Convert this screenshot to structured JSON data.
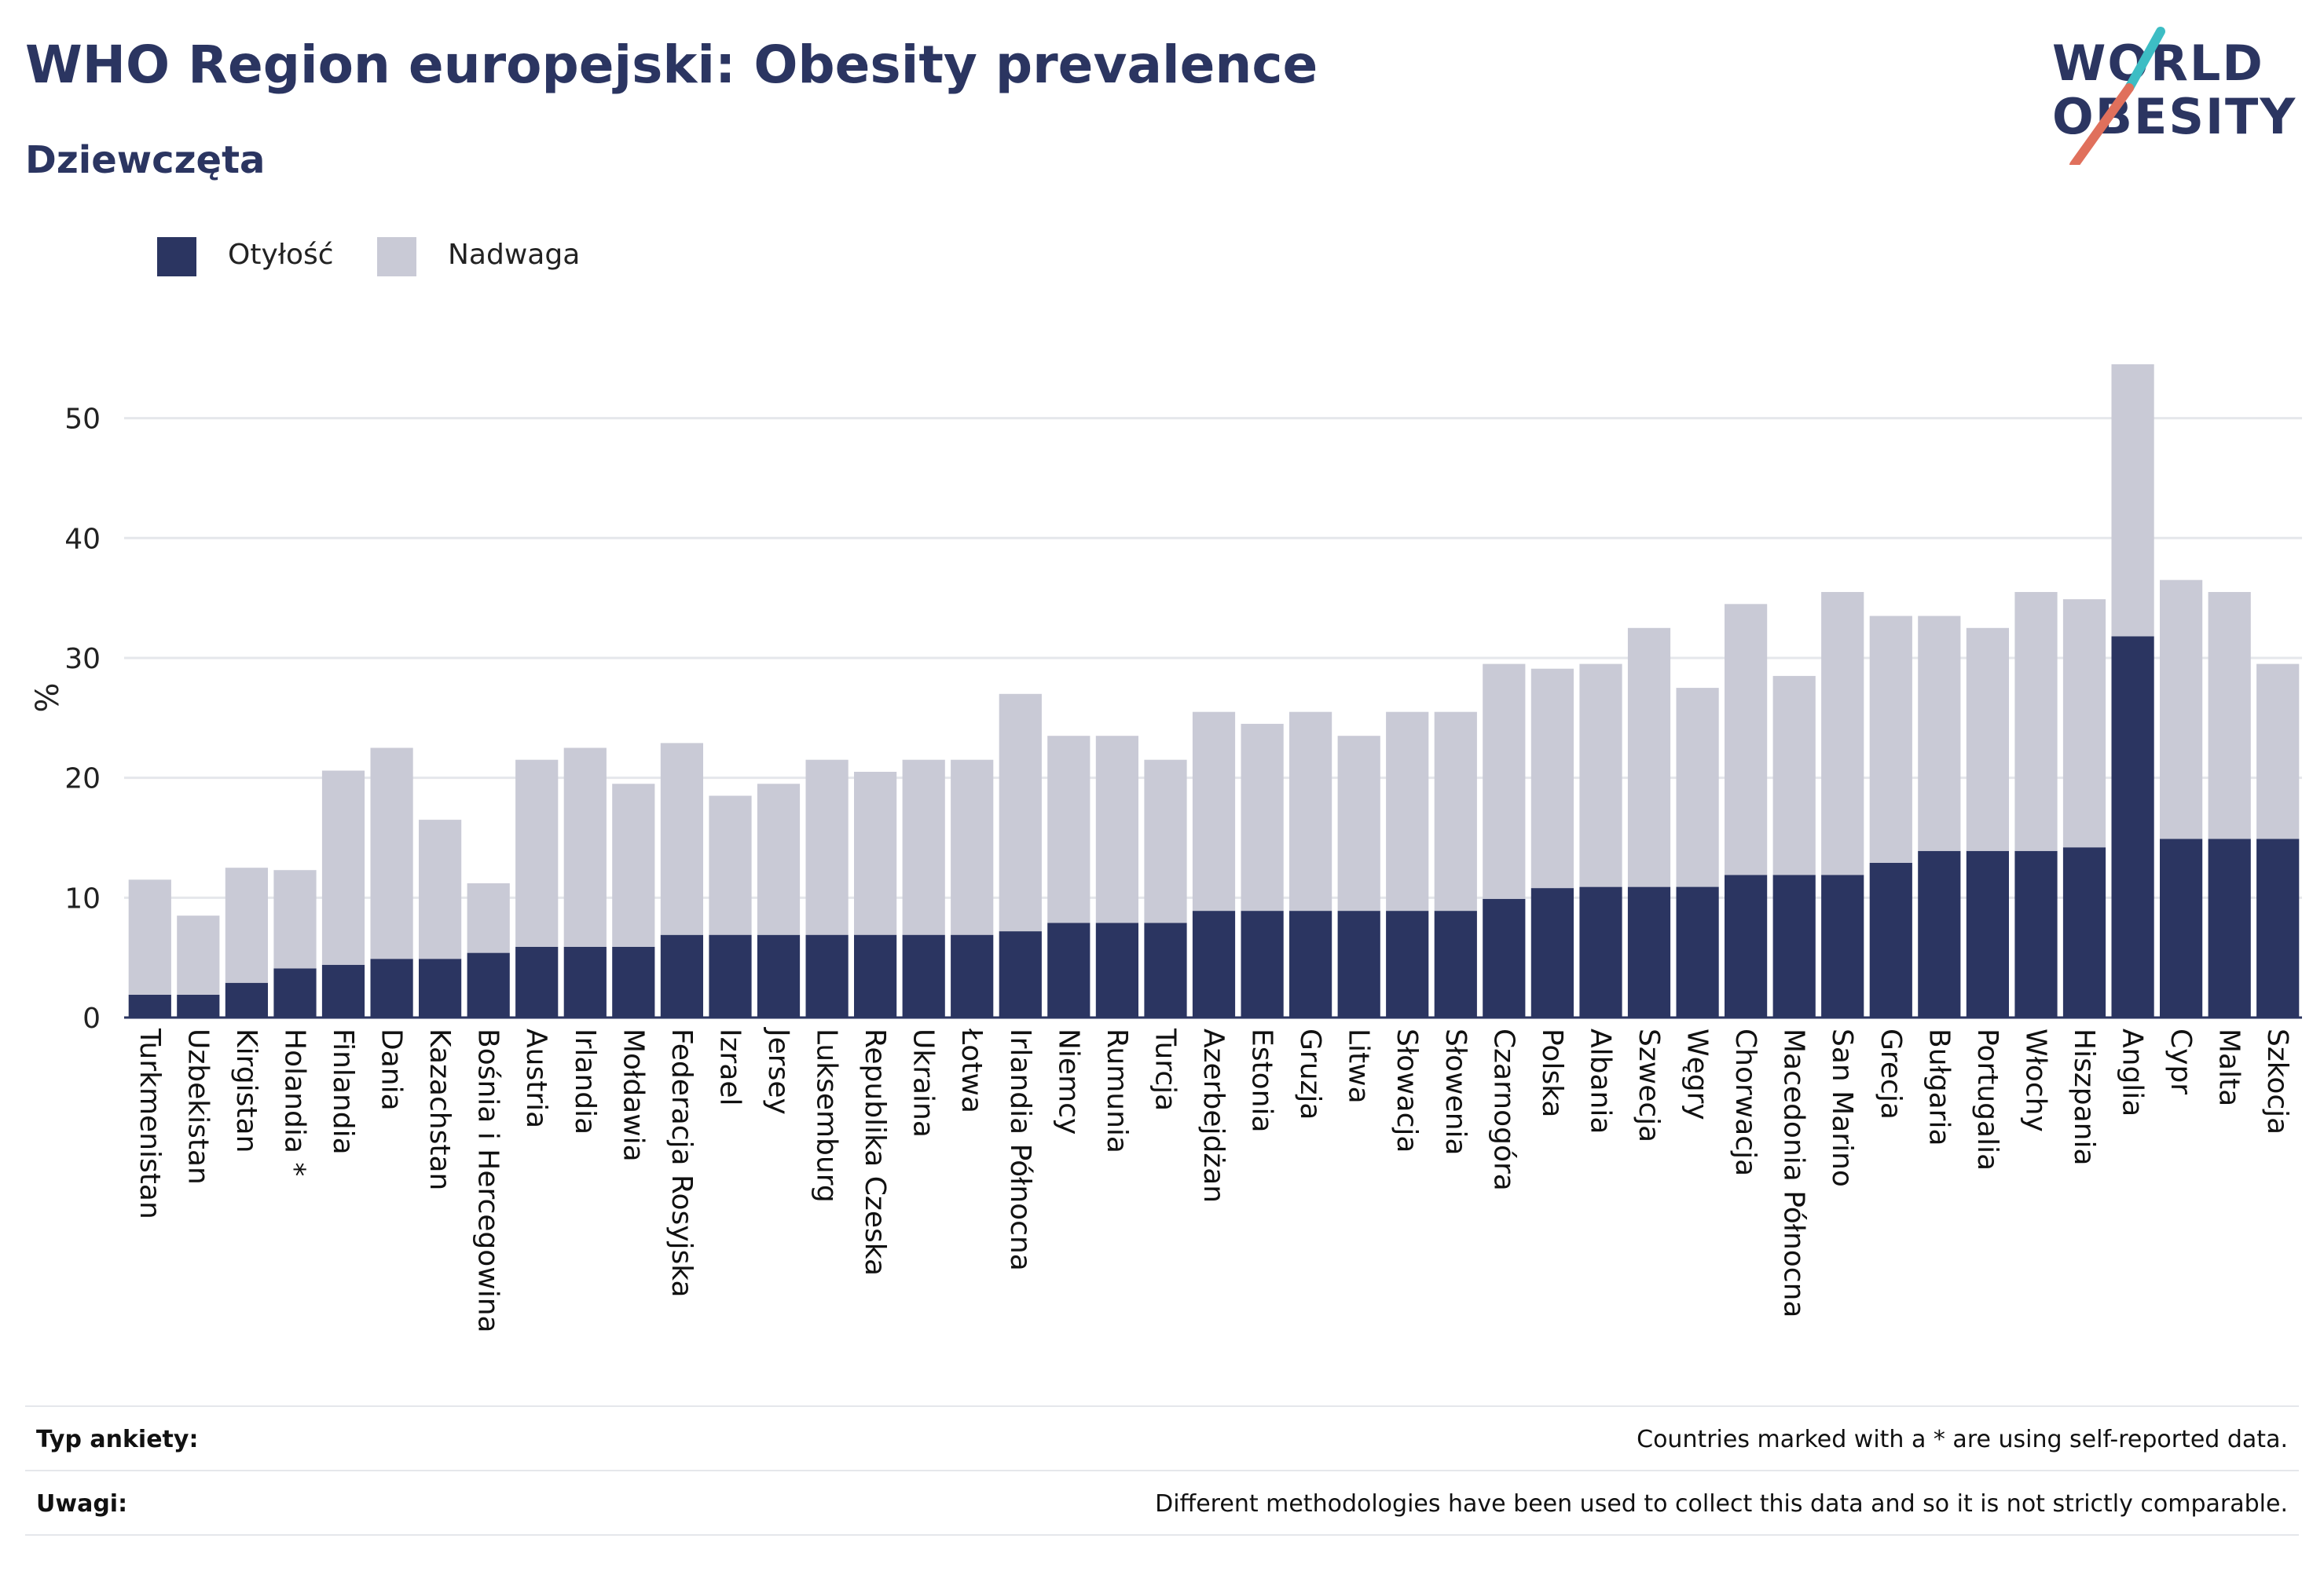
{
  "title": "WHO Region europejski: Obesity prevalence",
  "subtitle": "Dziewczęta",
  "logo": {
    "line1": "WORLD",
    "line2": "OBESITY"
  },
  "colors": {
    "obesity": "#2b3561",
    "overweight": "#c9cad6",
    "title": "#2b3561",
    "logo_teal": "#3dbdc4",
    "logo_coral": "#e0705c",
    "grid": "#e5e7eb"
  },
  "legend": [
    {
      "label": "Otyłość",
      "color": "#2b3561"
    },
    {
      "label": "Nadwaga",
      "color": "#c9cad6"
    }
  ],
  "footer": {
    "survey_label": "Typ ankiety:",
    "survey_text": "Countries marked with a * are using self-reported data.",
    "notes_label": "Uwagi:",
    "notes_text": "Different methodologies have been used to collect this data and so it is not strictly comparable."
  },
  "chart_data": {
    "type": "bar",
    "stacked": true,
    "ylabel": "%",
    "xlabel": "",
    "ylim": [
      0,
      56
    ],
    "yticks": [
      0,
      10,
      20,
      30,
      40,
      50
    ],
    "grid": true,
    "legend_position": "top-left",
    "categories": [
      "Turkmenistan",
      "Uzbekistan",
      "Kirgistan",
      "Holandia *",
      "Finlandia",
      "Dania",
      "Kazachstan",
      "Bośnia i Hercegowina",
      "Austria",
      "Irlandia",
      "Mołdawia",
      "Federacja Rosyjska",
      "Izrael",
      "Jersey",
      "Luksemburg",
      "Republika Czeska",
      "Ukraina",
      "Łotwa",
      "Irlandia Północna",
      "Niemcy",
      "Rumunia",
      "Turcja",
      "Azerbejdżan",
      "Estonia",
      "Gruzja",
      "Litwa",
      "Słowacja",
      "Słowenia",
      "Czarnogóra",
      "Polska",
      "Albania",
      "Szwecja",
      "Węgry",
      "Chorwacja",
      "Macedonia Północna",
      "San Marino",
      "Grecja",
      "Bułgaria",
      "Portugalia",
      "Włochy",
      "Hiszpania",
      "Anglia",
      "Cypr",
      "Malta",
      "Szkocja"
    ],
    "series": [
      {
        "name": "Otyłość",
        "values": [
          1.9,
          1.9,
          2.9,
          4.1,
          4.4,
          4.9,
          4.9,
          5.4,
          5.9,
          5.9,
          5.9,
          6.9,
          6.9,
          6.9,
          6.9,
          6.9,
          6.9,
          6.9,
          7.2,
          7.9,
          7.9,
          7.9,
          8.9,
          8.9,
          8.9,
          8.9,
          8.9,
          8.9,
          9.9,
          10.8,
          10.9,
          10.9,
          10.9,
          11.9,
          11.9,
          11.9,
          12.9,
          13.9,
          13.9,
          13.9,
          14.2,
          31.8,
          14.9,
          14.9,
          14.9
        ]
      },
      {
        "name": "Nadwaga",
        "values": [
          9.6,
          6.6,
          9.6,
          8.2,
          16.2,
          17.6,
          11.6,
          5.8,
          15.6,
          16.6,
          13.6,
          16.0,
          11.6,
          12.6,
          14.6,
          13.6,
          14.6,
          14.6,
          19.8,
          15.6,
          15.6,
          13.6,
          16.6,
          15.6,
          16.6,
          14.6,
          16.6,
          16.6,
          19.6,
          18.3,
          18.6,
          21.6,
          16.6,
          22.6,
          16.6,
          23.6,
          20.6,
          19.6,
          18.6,
          21.6,
          20.7,
          22.7,
          21.6,
          20.6,
          14.6
        ]
      }
    ]
  }
}
